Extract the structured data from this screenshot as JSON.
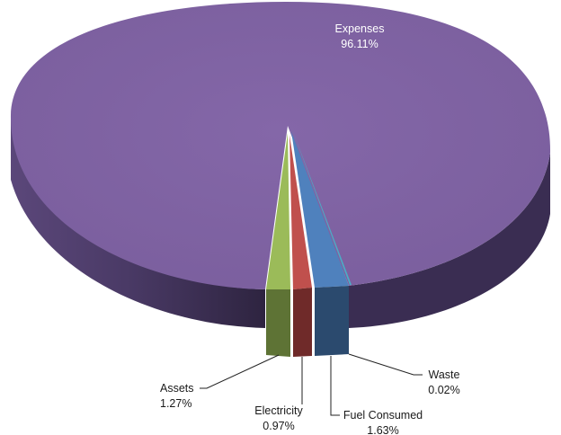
{
  "chart_data": {
    "type": "pie",
    "style": "3d-exploded",
    "legend": "none",
    "slices": [
      {
        "name": "Expenses",
        "value": 96.11,
        "label": "96.11%",
        "color": "#8064A2"
      },
      {
        "name": "Waste",
        "value": 0.02,
        "label": "0.02%",
        "color": "#4BACC6"
      },
      {
        "name": "Fuel Consumed",
        "value": 1.63,
        "label": "1.63%",
        "color": "#4F81BD"
      },
      {
        "name": "Electricity",
        "value": 0.97,
        "label": "0.97%",
        "color": "#C0504D"
      },
      {
        "name": "Assets",
        "value": 1.27,
        "label": "1.27%",
        "color": "#9BBB59"
      }
    ]
  }
}
